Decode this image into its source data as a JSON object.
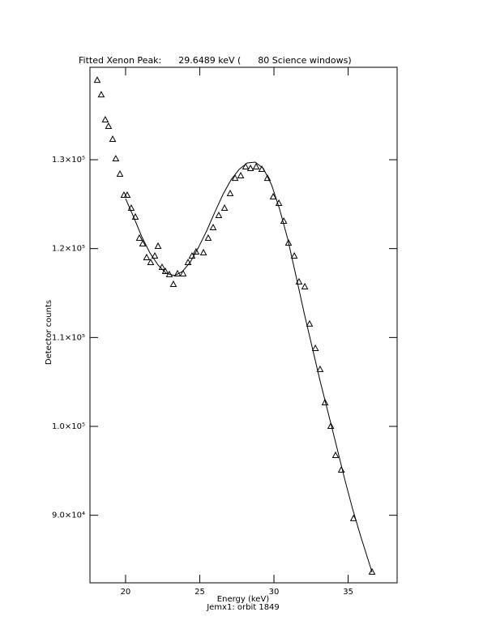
{
  "chart_data": {
    "type": "scatter",
    "title": "Fitted Xenon Peak:      29.6489 keV (      80 Science windows)",
    "x_label": "Energy (keV)",
    "subtitle": "Jemx1: orbit 1849",
    "y_label": "Detector counts",
    "xlim": [
      17.6,
      38.3
    ],
    "ylim": [
      82400,
      140400
    ],
    "xticks": [
      20,
      25,
      30,
      35
    ],
    "yticks": [
      {
        "value": 90000,
        "label": "9.0×10⁴"
      },
      {
        "value": 100000,
        "label": "1.0×10⁵"
      },
      {
        "value": 110000,
        "label": "1.1×10⁵"
      },
      {
        "value": 120000,
        "label": "1.2×10⁵"
      },
      {
        "value": 130000,
        "label": "1.3×10⁵"
      }
    ],
    "series": [
      {
        "style": "triangle",
        "color": "#000000",
        "x": [
          18.09,
          18.36,
          18.63,
          18.85,
          19.13,
          19.34,
          19.62,
          19.89,
          20.11,
          20.38,
          20.66,
          20.93,
          21.15,
          21.42,
          21.69,
          21.97,
          22.19,
          22.46,
          22.68,
          22.95,
          23.22,
          23.5,
          23.88,
          24.21,
          24.48,
          24.75,
          25.25,
          25.57,
          25.9,
          26.28,
          26.67,
          27.05,
          27.38,
          27.76,
          28.09,
          28.42,
          28.8,
          29.18,
          29.56,
          29.95,
          30.33,
          30.66,
          30.98,
          31.37,
          31.69,
          32.08,
          32.4,
          32.79,
          33.11,
          33.44,
          33.83,
          34.15,
          34.54,
          35.36,
          36.61
        ],
        "values": [
          138930,
          137290,
          134470,
          133740,
          132280,
          130090,
          128360,
          125990,
          125990,
          124530,
          123530,
          121160,
          120520,
          118970,
          118420,
          119150,
          120250,
          117880,
          117420,
          117060,
          115960,
          117150,
          117150,
          118420,
          119150,
          119610,
          119520,
          121160,
          122340,
          123710,
          124530,
          126170,
          127900,
          128180,
          129180,
          129000,
          129180,
          128910,
          127900,
          125810,
          125080,
          123070,
          120610,
          119150,
          116240,
          115690,
          111500,
          108760,
          106390,
          102650,
          100000,
          96720,
          95080,
          89620,
          83600
        ]
      },
      {
        "style": "line",
        "color": "#000000",
        "x": [
          20.0,
          20.55,
          21.09,
          21.64,
          22.19,
          22.73,
          23.28,
          23.83,
          24.37,
          24.92,
          25.46,
          26.01,
          26.56,
          27.1,
          27.65,
          28.2,
          28.74,
          29.29,
          29.84,
          30.38,
          30.93,
          31.48,
          32.02,
          32.57,
          33.11,
          33.66,
          34.21,
          34.75,
          35.3,
          35.85,
          36.61
        ],
        "values": [
          125620,
          123530,
          121340,
          119520,
          118150,
          117240,
          116960,
          117420,
          118510,
          120150,
          121980,
          124080,
          126080,
          127720,
          128910,
          129640,
          129730,
          129000,
          127170,
          124440,
          121070,
          116960,
          112860,
          108940,
          105110,
          101470,
          97820,
          94170,
          90710,
          87610,
          83600
        ]
      }
    ]
  }
}
